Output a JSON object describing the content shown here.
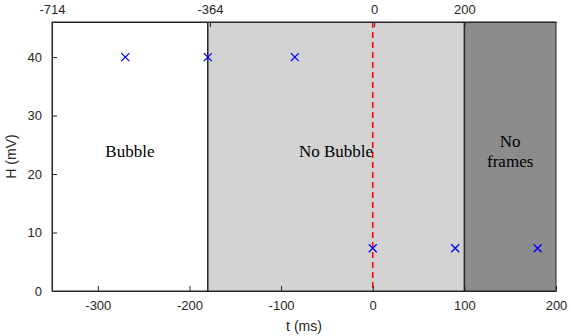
{
  "chart_data": {
    "type": "scatter",
    "x_label": "t (ms)",
    "y_label": "H (mV)",
    "x": [
      -270,
      -180,
      -85,
      0,
      90,
      180
    ],
    "values": [
      40,
      40,
      40,
      7.3,
      7.3,
      7.3
    ],
    "color": "#0000ff",
    "marker": "x",
    "xlim": [
      -350,
      200
    ],
    "ylim": [
      0,
      46
    ],
    "xticks": [
      -300,
      -200,
      -100,
      0,
      100,
      200
    ],
    "yticks": [
      0,
      10,
      20,
      30,
      40
    ],
    "x2lim": [
      -714,
      403
    ],
    "x2ticks": [
      -714,
      -364,
      0,
      200
    ],
    "regions": [
      {
        "label": "Bubble",
        "start": -350,
        "end": -180,
        "color": "#ffffff"
      },
      {
        "label": "No Bubble",
        "start": -180,
        "end": 100,
        "color": "#d3d3d3"
      },
      {
        "label": "No\nframes",
        "start": 100,
        "end": 200,
        "color": "#8c8c8c"
      }
    ],
    "vline": {
      "x": 0,
      "color": "#ff0000",
      "line_style": "dashed"
    }
  }
}
